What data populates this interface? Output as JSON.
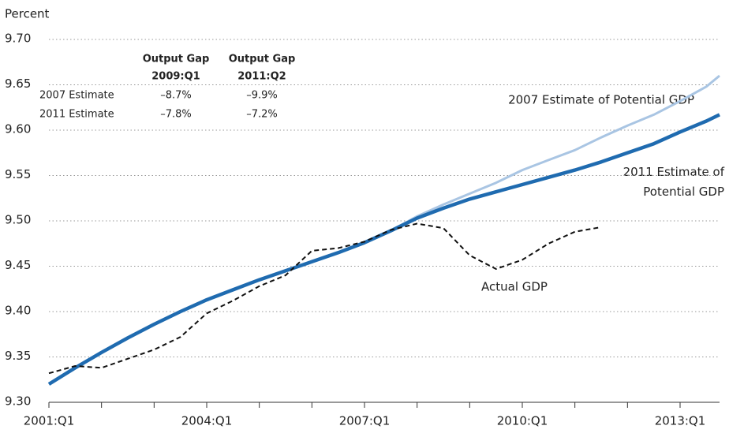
{
  "chart_data": {
    "type": "line",
    "y_axis_label": "Percent",
    "x": [
      2001,
      2001.5,
      2002,
      2002.5,
      2003,
      2003.5,
      2004,
      2004.5,
      2005,
      2005.5,
      2006,
      2006.5,
      2007,
      2007.5,
      2008,
      2008.5,
      2009,
      2009.5,
      2010,
      2010.5,
      2011,
      2011.5,
      2012,
      2012.5,
      2013,
      2013.5,
      2013.75
    ],
    "xlim": [
      2001,
      2013.75
    ],
    "xticks": [
      {
        "value": 2001,
        "label": "2001:Q1"
      },
      {
        "value": 2002,
        "label": null
      },
      {
        "value": 2003,
        "label": null
      },
      {
        "value": 2004,
        "label": "2004:Q1"
      },
      {
        "value": 2005,
        "label": null
      },
      {
        "value": 2006,
        "label": null
      },
      {
        "value": 2007,
        "label": "2007:Q1"
      },
      {
        "value": 2008,
        "label": null
      },
      {
        "value": 2009,
        "label": null
      },
      {
        "value": 2010,
        "label": "2010:Q1"
      },
      {
        "value": 2011,
        "label": null
      },
      {
        "value": 2012,
        "label": null
      },
      {
        "value": 2013,
        "label": "2013:Q1"
      }
    ],
    "ylim": [
      9.3,
      9.7
    ],
    "yticks": [
      {
        "value": 9.3,
        "label": "9.30"
      },
      {
        "value": 9.35,
        "label": "9.35"
      },
      {
        "value": 9.4,
        "label": "9.40"
      },
      {
        "value": 9.45,
        "label": "9.45"
      },
      {
        "value": 9.5,
        "label": "9.50"
      },
      {
        "value": 9.55,
        "label": "9.55"
      },
      {
        "value": 9.6,
        "label": "9.60"
      },
      {
        "value": 9.65,
        "label": "9.65"
      },
      {
        "value": 9.7,
        "label": "9.70"
      }
    ],
    "grid": true,
    "series": [
      {
        "name": "2007 Estimate of Potential GDP",
        "color": "#a9c5e3",
        "values": [
          9.32,
          9.338,
          9.355,
          9.371,
          9.386,
          9.4,
          9.413,
          9.424,
          9.435,
          9.445,
          9.455,
          9.465,
          9.476,
          9.489,
          9.505,
          9.518,
          9.53,
          9.542,
          9.556,
          9.567,
          9.578,
          9.592,
          9.605,
          9.617,
          9.632,
          9.648,
          9.66
        ]
      },
      {
        "name": "2011 Estimate of Potential GDP",
        "color": "#1f6bb0",
        "values": [
          9.32,
          9.338,
          9.355,
          9.371,
          9.386,
          9.4,
          9.413,
          9.424,
          9.435,
          9.445,
          9.455,
          9.465,
          9.476,
          9.489,
          9.503,
          9.514,
          9.524,
          9.532,
          9.54,
          9.548,
          9.556,
          9.565,
          9.575,
          9.585,
          9.598,
          9.61,
          9.617
        ]
      },
      {
        "name": "Actual GDP",
        "color": "#111111",
        "values": [
          9.332,
          9.34,
          9.338,
          9.348,
          9.358,
          9.372,
          9.398,
          9.412,
          9.428,
          9.44,
          9.467,
          9.47,
          9.477,
          9.49,
          9.497,
          9.492,
          9.462,
          9.447,
          9.457,
          9.475,
          9.488,
          9.493,
          null,
          null,
          null,
          null,
          null
        ]
      }
    ],
    "table": {
      "headers": [
        [
          "Output Gap",
          "2009:Q1"
        ],
        [
          "Output Gap",
          "2011:Q2"
        ]
      ],
      "rows": [
        {
          "label": "2007 Estimate",
          "values": [
            "–8.7%",
            "–9.9%"
          ]
        },
        {
          "label": "2011 Estimate",
          "values": [
            "–7.8%",
            "–7.2%"
          ]
        }
      ]
    }
  }
}
